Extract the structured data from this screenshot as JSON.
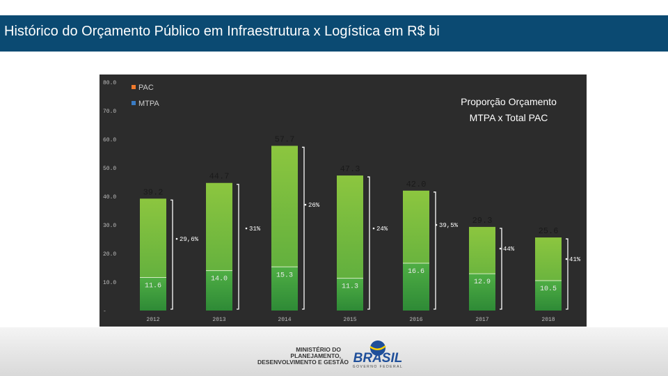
{
  "header": {
    "title": "Histórico do Orçamento Público em Infraestrutura x Logística em R$ bi"
  },
  "colors": {
    "header_bg": "#0b4a72",
    "pac": "#f07a2c",
    "mtpa": "#3a7cc4",
    "bar_light": "#8cc63f",
    "bar_dark": "#3f9f3a",
    "panel_bg": "#2c2c2c"
  },
  "chart_data": {
    "type": "bar",
    "title": "",
    "annotation": "Proporção Orçamento MTPA x Total PAC",
    "categories": [
      "2012",
      "2013",
      "2014",
      "2015",
      "2016",
      "2017",
      "2018"
    ],
    "series": [
      {
        "name": "PAC",
        "values": [
          39.2,
          44.7,
          57.7,
          47.3,
          42.0,
          29.3,
          25.6
        ],
        "labels": [
          "39.2",
          "44.7",
          "57.7",
          "47.3",
          "42.0",
          "29.3",
          "25.6"
        ]
      },
      {
        "name": "MTPA",
        "values": [
          11.6,
          14.0,
          15.3,
          11.3,
          16.6,
          12.9,
          10.5
        ],
        "labels": [
          "11.6",
          "14.0",
          "15.3",
          "11.3",
          "16.6",
          "12.9",
          "10.5"
        ]
      }
    ],
    "proportions": [
      "29,6%",
      "31%",
      "26%",
      "24%",
      "39,5%",
      "44%",
      "41%"
    ],
    "y_ticks": [
      "-",
      "10.0",
      "20.0",
      "30.0",
      "40.0",
      "50.0",
      "60.0",
      "70.0",
      "80.0"
    ],
    "ylim": [
      0,
      80
    ],
    "legend": [
      "PAC",
      "MTPA"
    ],
    "legend_position": "top-left",
    "xlabel": "",
    "ylabel": ""
  },
  "footer": {
    "ministry_lines": [
      "MINISTÉRIO DO",
      "PLANEJAMENTO,",
      "DESENVOLVIMENTO E GESTÃO"
    ],
    "brasil_logo": "BRASIL",
    "brasil_tagline": "GOVERNO FEDERAL"
  }
}
